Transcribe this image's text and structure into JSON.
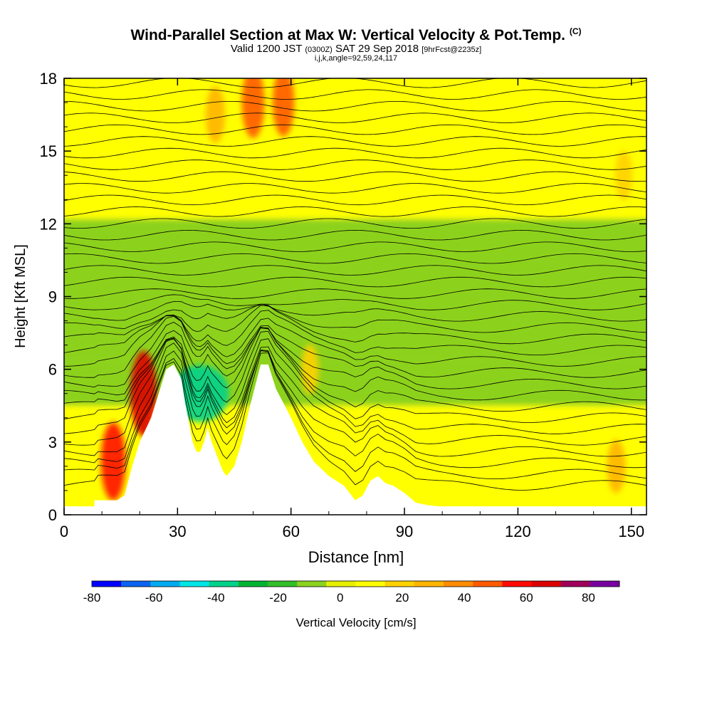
{
  "title": {
    "main": "Wind-Parallel Section at Max W: Vertical Velocity & Pot.Temp.",
    "copyright": "(C)",
    "valid_prefix": "Valid 1200 JST",
    "valid_z": "(0300Z)",
    "valid_date": "SAT 29 Sep 2018",
    "forecast": "[9hrFcst@2235z]",
    "indices": "i,j,k,angle=92,59,24,117"
  },
  "chart_data": {
    "type": "heatmap",
    "xlabel": "Distance [nm]",
    "ylabel": "Height [Kft MSL]",
    "xlim": [
      0,
      154
    ],
    "ylim": [
      0,
      18
    ],
    "x_ticks": [
      "0",
      "30",
      "60",
      "90",
      "120",
      "150"
    ],
    "y_ticks": [
      "0",
      "3",
      "6",
      "9",
      "12",
      "15",
      "18"
    ],
    "colorbar": {
      "label": "Vertical Velocity [cm/s]",
      "range": [
        -80,
        90
      ],
      "tick_labels": [
        "-80",
        "-60",
        "-40",
        "-20",
        "0",
        "20",
        "40",
        "60",
        "80"
      ],
      "colors": [
        "#0000ff",
        "#0a64f0",
        "#00aaf0",
        "#00e6e6",
        "#00d28c",
        "#00b432",
        "#32be28",
        "#8cd21e",
        "#e6f000",
        "#ffff00",
        "#ffd200",
        "#ffb400",
        "#ff8c00",
        "#ff5a00",
        "#ff0a00",
        "#dc0000",
        "#a0005a",
        "#7800a0"
      ]
    },
    "terrain_profile": [
      [
        0,
        0.35
      ],
      [
        8,
        0.35
      ],
      [
        8,
        0.6
      ],
      [
        14,
        0.6
      ],
      [
        16,
        0.8
      ],
      [
        18,
        2
      ],
      [
        20,
        3
      ],
      [
        23,
        4
      ],
      [
        25,
        5
      ],
      [
        27,
        6
      ],
      [
        29,
        6.2
      ],
      [
        31,
        5.6
      ],
      [
        32,
        4.6
      ],
      [
        34,
        3
      ],
      [
        35,
        2.6
      ],
      [
        36,
        2.6
      ],
      [
        37,
        3
      ],
      [
        38,
        3.6
      ],
      [
        39,
        3
      ],
      [
        40,
        2.6
      ],
      [
        41,
        2.2
      ],
      [
        42,
        1.8
      ],
      [
        43,
        1.6
      ],
      [
        45,
        2
      ],
      [
        47,
        3
      ],
      [
        49,
        4.4
      ],
      [
        51,
        5.6
      ],
      [
        52,
        6.2
      ],
      [
        54,
        6.2
      ],
      [
        56,
        5.2
      ],
      [
        58,
        4.6
      ],
      [
        60,
        4
      ],
      [
        63,
        3
      ],
      [
        66,
        2.2
      ],
      [
        70,
        1.6
      ],
      [
        74,
        1.2
      ],
      [
        77,
        0.6
      ],
      [
        79,
        0.8
      ],
      [
        81,
        1.4
      ],
      [
        83,
        1.6
      ],
      [
        85,
        1.3
      ],
      [
        87,
        1.2
      ],
      [
        90,
        0.9
      ],
      [
        93,
        0.5
      ],
      [
        96,
        0.4
      ],
      [
        99,
        0.35
      ],
      [
        154,
        0.35
      ]
    ],
    "vertical_velocity_features": [
      {
        "x": 13,
        "y": 2.2,
        "value": 60
      },
      {
        "x": 21,
        "y": 5.0,
        "value": 70
      },
      {
        "x": 36,
        "y": 5.0,
        "value": -40
      },
      {
        "x": 50,
        "y": 17.0,
        "value": 50
      },
      {
        "x": 58,
        "y": 17.0,
        "value": 45
      },
      {
        "x": 40,
        "y": 16.5,
        "value": 30
      },
      {
        "x": 65,
        "y": 6.0,
        "value": 20
      },
      {
        "x": 146,
        "y": 2.0,
        "value": 25
      },
      {
        "x": 148,
        "y": 14.0,
        "value": 20
      },
      {
        "x": 70,
        "y": 9.5,
        "value": -10
      },
      {
        "x": 120,
        "y": 9.0,
        "value": -10
      }
    ],
    "theta_contours": {
      "count": 36,
      "interval": "2"
    }
  }
}
